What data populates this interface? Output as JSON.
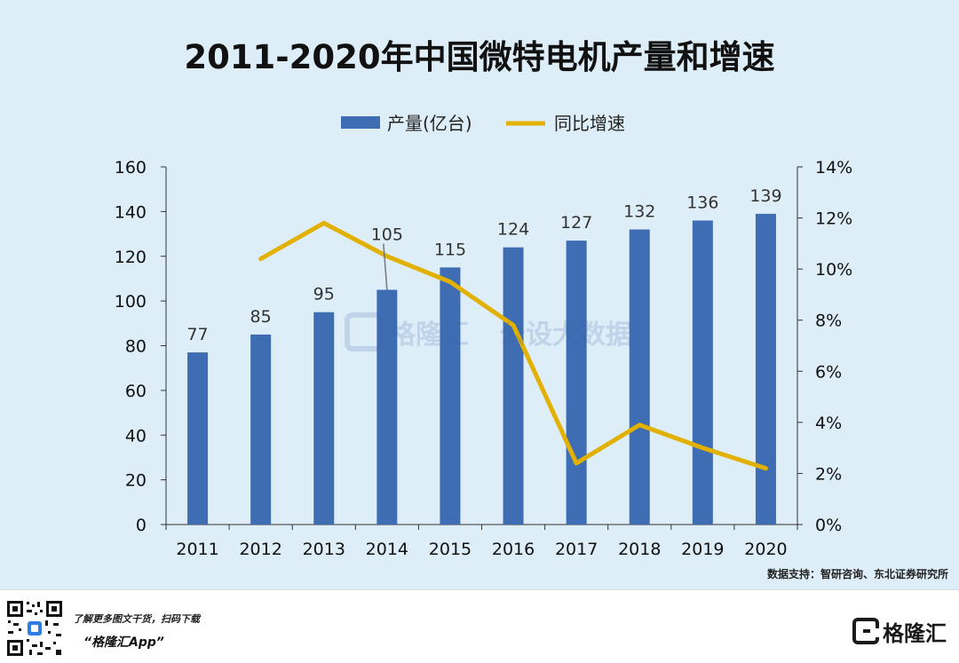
{
  "title": "2011-2020年中国微特电机产量和增速",
  "source": "数据支持：智研咨询、东北证券研究所",
  "footer": {
    "promo_text": "了解更多图文干货，扫码下载",
    "app_name": "“格隆汇App”",
    "logo_text": "格隆汇"
  },
  "watermark": {
    "brand": "格隆汇",
    "slogan": "公设大数据"
  },
  "colors": {
    "bar": "#3f6db3",
    "line": "#e2b100",
    "background": "#ddeef8"
  },
  "chart_data": {
    "type": "bar",
    "categories": [
      "2011",
      "2012",
      "2013",
      "2014",
      "2015",
      "2016",
      "2017",
      "2018",
      "2019",
      "2020"
    ],
    "series": [
      {
        "name": "产量(亿台)",
        "type": "bar",
        "axis": "left",
        "values": [
          77,
          85,
          95,
          105,
          115,
          124,
          127,
          132,
          136,
          139
        ],
        "data_labels": [
          "77",
          "85",
          "95",
          "105",
          "115",
          "124",
          "127",
          "132",
          "136",
          "139"
        ]
      },
      {
        "name": "同比增速",
        "type": "line",
        "axis": "right",
        "values": [
          null,
          10.4,
          11.8,
          10.5,
          9.5,
          7.8,
          2.4,
          3.9,
          3.0,
          2.2
        ]
      }
    ],
    "y_left": {
      "min": 0,
      "max": 160,
      "ticks": [
        "0",
        "20",
        "40",
        "60",
        "80",
        "100",
        "120",
        "140",
        "160"
      ]
    },
    "y_right": {
      "min": 0,
      "max": 14,
      "ticks": [
        "0%",
        "2%",
        "4%",
        "6%",
        "8%",
        "10%",
        "12%",
        "14%"
      ]
    },
    "legend_position": "top-center",
    "grid": false
  }
}
